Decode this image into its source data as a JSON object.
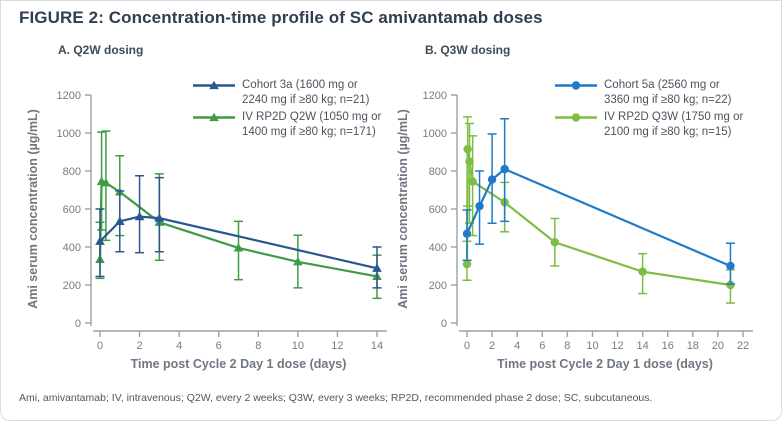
{
  "figure": {
    "title": "FIGURE 2: Concentration-time profile of SC amivantamab doses",
    "footnote": "Ami, amivantamab; IV, intravenous; Q2W, every 2 weeks; Q3W, every 3 weeks; RP2D, recommended phase 2 dose; SC, subcutaneous."
  },
  "colors": {
    "panel_a_blue": "#2b5791",
    "panel_a_green": "#3f9b45",
    "panel_b_blue": "#1f7ac9",
    "panel_b_green": "#7cbd42",
    "axis_line": "#9aa1a9",
    "tick_text": "#747c85",
    "axis_title_text": "#6f7780"
  },
  "chart_data": [
    {
      "type": "line",
      "panel_label": "A. Q2W dosing",
      "xlabel": "Time post Cycle 2 Day 1 dose (days)",
      "ylabel": "Ami serum concentration (µg/mL)",
      "xlim": [
        0,
        14
      ],
      "xticks": [
        0,
        2,
        4,
        6,
        8,
        10,
        12,
        14
      ],
      "ylim": [
        0,
        1200
      ],
      "yticks": [
        0,
        200,
        400,
        600,
        800,
        1000,
        1200
      ],
      "grid": false,
      "legend_position": "top-right",
      "error_bars": true,
      "series": [
        {
          "name": "Cohort 3a (1600 mg or 2240 mg if ≥80 kg; n=21)",
          "legend_lines": [
            "Cohort 3a (1600 mg or",
            "2240 mg if ≥80 kg; n=21)"
          ],
          "color": "#2b5791",
          "marker": "triangle",
          "points": [
            {
              "x": 0,
              "y": 430,
              "lo": 245,
              "hi": 600
            },
            {
              "x": 1,
              "y": 535,
              "lo": 375,
              "hi": 695
            },
            {
              "x": 2,
              "y": 560,
              "lo": 370,
              "hi": 775
            },
            {
              "x": 3,
              "y": 552,
              "lo": 375,
              "hi": 765
            },
            {
              "x": 14,
              "y": 288,
              "lo": 185,
              "hi": 400
            }
          ]
        },
        {
          "name": "IV RP2D Q2W (1050 mg or 1400 mg if ≥80 kg; n=171)",
          "legend_lines": [
            "IV RP2D Q2W (1050 mg or",
            "1400 mg if ≥80 kg; n=171)"
          ],
          "color": "#3f9b45",
          "marker": "triangle",
          "points": [
            {
              "x": 0,
              "y": 335,
              "lo": 235,
              "hi": 530
            },
            {
              "x": 0.08,
              "y": 745,
              "lo": 490,
              "hi": 1005
            },
            {
              "x": 0.3,
              "y": 738,
              "lo": 435,
              "hi": 1010
            },
            {
              "x": 1,
              "y": 690,
              "lo": 460,
              "hi": 880
            },
            {
              "x": 3,
              "y": 530,
              "lo": 330,
              "hi": 785
            },
            {
              "x": 7,
              "y": 395,
              "lo": 228,
              "hi": 535
            },
            {
              "x": 10,
              "y": 322,
              "lo": 185,
              "hi": 462
            },
            {
              "x": 14,
              "y": 245,
              "lo": 130,
              "hi": 357
            }
          ]
        }
      ]
    },
    {
      "type": "line",
      "panel_label": "B. Q3W dosing",
      "xlabel": "Time post Cycle 2 Day 1 dose (days)",
      "ylabel": "Ami serum concentration (µg/mL)",
      "xlim": [
        0,
        22
      ],
      "xticks": [
        0,
        2,
        4,
        6,
        8,
        10,
        12,
        14,
        16,
        18,
        20,
        22
      ],
      "ylim": [
        0,
        1200
      ],
      "yticks": [
        0,
        200,
        400,
        600,
        800,
        1000,
        1200
      ],
      "grid": false,
      "legend_position": "top-right",
      "error_bars": true,
      "series": [
        {
          "name": "Cohort 5a (2560 mg or 3360 mg if ≥80 kg; n=22)",
          "legend_lines": [
            "Cohort 5a (2560 mg or",
            "3360 mg if ≥80 kg; n=22)"
          ],
          "color": "#1f7ac9",
          "marker": "circle",
          "points": [
            {
              "x": 0,
              "y": 470,
              "lo": 330,
              "hi": 595
            },
            {
              "x": 1,
              "y": 615,
              "lo": 415,
              "hi": 800
            },
            {
              "x": 2,
              "y": 755,
              "lo": 525,
              "hi": 995
            },
            {
              "x": 3,
              "y": 810,
              "lo": 535,
              "hi": 1075
            },
            {
              "x": 21,
              "y": 300,
              "lo": 205,
              "hi": 420
            }
          ]
        },
        {
          "name": "IV RP2D Q3W (1750 mg or 2100 mg if ≥80 kg; n=15)",
          "legend_lines": [
            "IV RP2D Q3W (1750 mg or",
            "2100 mg if ≥80 kg; n=15)"
          ],
          "color": "#7cbd42",
          "marker": "circle",
          "points": [
            {
              "x": 0,
              "y": 310,
              "lo": 225,
              "hi": 430
            },
            {
              "x": 0.05,
              "y": 915,
              "lo": 615,
              "hi": 1085
            },
            {
              "x": 0.2,
              "y": 850,
              "lo": 525,
              "hi": 1050
            },
            {
              "x": 0.45,
              "y": 745,
              "lo": 460,
              "hi": 985
            },
            {
              "x": 3,
              "y": 635,
              "lo": 480,
              "hi": 740
            },
            {
              "x": 7,
              "y": 425,
              "lo": 300,
              "hi": 550
            },
            {
              "x": 14,
              "y": 270,
              "lo": 155,
              "hi": 365
            },
            {
              "x": 21,
              "y": 200,
              "lo": 105,
              "hi": 280
            }
          ]
        }
      ]
    }
  ]
}
